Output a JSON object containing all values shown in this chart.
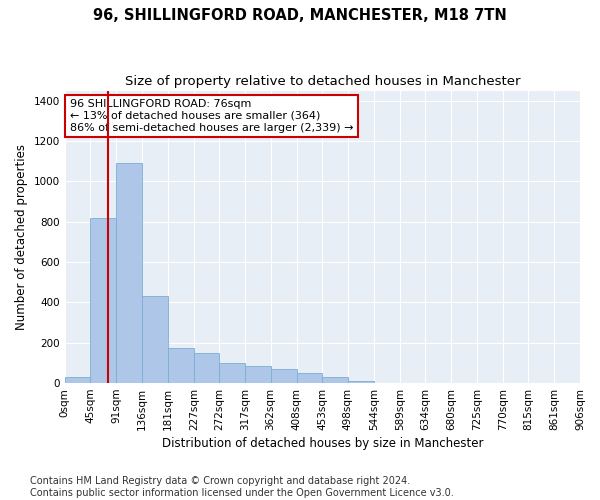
{
  "title": "96, SHILLINGFORD ROAD, MANCHESTER, M18 7TN",
  "subtitle": "Size of property relative to detached houses in Manchester",
  "xlabel": "Distribution of detached houses by size in Manchester",
  "ylabel": "Number of detached properties",
  "bar_color": "#aec6e8",
  "bar_edge_color": "#7bafd4",
  "property_line_x": 76,
  "property_line_color": "#cc0000",
  "annotation_text": "96 SHILLINGFORD ROAD: 76sqm\n← 13% of detached houses are smaller (364)\n86% of semi-detached houses are larger (2,339) →",
  "annotation_box_color": "#cc0000",
  "bin_edges": [
    0,
    45,
    91,
    136,
    181,
    227,
    272,
    317,
    362,
    408,
    453,
    498,
    544,
    589,
    634,
    680,
    725,
    770,
    815,
    861,
    906
  ],
  "bar_heights": [
    30,
    820,
    1090,
    430,
    175,
    150,
    100,
    85,
    70,
    50,
    28,
    8,
    0,
    0,
    0,
    0,
    0,
    0,
    0,
    0
  ],
  "ylim": [
    0,
    1450
  ],
  "yticks": [
    0,
    200,
    400,
    600,
    800,
    1000,
    1200,
    1400
  ],
  "plot_bg_color": "#e8eef5",
  "footer_text": "Contains HM Land Registry data © Crown copyright and database right 2024.\nContains public sector information licensed under the Open Government Licence v3.0.",
  "title_fontsize": 10.5,
  "subtitle_fontsize": 9.5,
  "xlabel_fontsize": 8.5,
  "ylabel_fontsize": 8.5,
  "tick_fontsize": 7.5,
  "annotation_fontsize": 8,
  "footer_fontsize": 7
}
